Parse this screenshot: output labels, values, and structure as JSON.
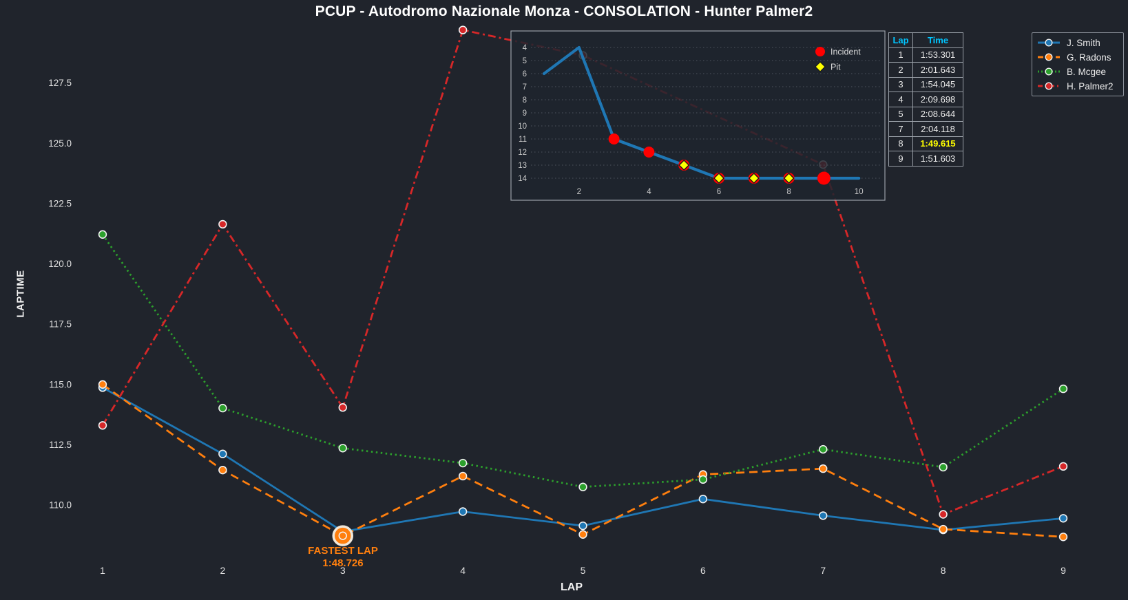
{
  "title": "PCUP - Autodromo Nazionale Monza - CONSOLATION - Hunter Palmer2",
  "colors": {
    "background": "#20242c",
    "text": "#ececec",
    "tick_text": "#e2e2e2",
    "table_header": "#00c5ff",
    "highlight": "#ffff00",
    "incident": "#ff0000",
    "pit": "#ffff00",
    "annotation": "#ff7f0e",
    "inset_grid": "#4d545e",
    "panel_border": "#9aa0a8"
  },
  "chart_data": {
    "type": "line",
    "title": "PCUP - Autodromo Nazionale Monza - CONSOLATION - Hunter Palmer2",
    "xlabel": "LAP",
    "ylabel": "LAPTIME",
    "grid": false,
    "legend_position": "upper right",
    "axes": {
      "xticks": [
        1,
        2,
        3,
        4,
        5,
        6,
        7,
        8,
        9
      ],
      "yticks": [
        "127.5",
        "125.0",
        "122.5",
        "120.0",
        "117.5",
        "115.0",
        "112.5",
        "110.0"
      ],
      "ytick_values": [
        127.5,
        125.0,
        122.5,
        120.0,
        117.5,
        115.0,
        112.5,
        110.0
      ],
      "ylim": [
        108.4,
        130.1
      ],
      "xlim": [
        0.8,
        9.5
      ]
    },
    "x": [
      1,
      2,
      3,
      4,
      5,
      6,
      7,
      8,
      9
    ],
    "series": [
      {
        "name": "J. Smith",
        "color": "#1f77b4",
        "style": "solid",
        "values": [
          114.87,
          112.12,
          108.9,
          109.73,
          109.14,
          110.25,
          109.56,
          108.97,
          109.45
        ]
      },
      {
        "name": "G. Radons",
        "color": "#ff7f0e",
        "style": "dashed",
        "values": [
          115.0,
          111.45,
          108.726,
          111.2,
          108.78,
          111.27,
          111.51,
          109.0,
          108.68
        ]
      },
      {
        "name": "B. Mcgee",
        "color": "#2ca02c",
        "style": "dotted",
        "values": [
          121.22,
          114.02,
          112.36,
          111.74,
          110.75,
          111.06,
          112.31,
          111.57,
          114.82
        ]
      },
      {
        "name": "H. Palmer2",
        "color": "#d62728",
        "style": "dashdot",
        "values": [
          113.301,
          121.643,
          114.045,
          129.698,
          128.644,
          null,
          124.118,
          109.615,
          111.603
        ]
      }
    ],
    "fastest_lap": {
      "series": "G. Radons",
      "lap": 3,
      "value": 108.726,
      "label": "FASTEST LAP",
      "time": "1:48.726"
    },
    "inset": {
      "type": "line",
      "description": "position by lap",
      "laps": [
        1,
        2,
        3,
        4,
        5,
        6,
        7,
        8,
        9,
        10
      ],
      "positions": [
        6,
        4,
        11,
        12,
        13,
        14,
        14,
        14,
        14,
        14
      ],
      "incident_laps": [
        3,
        4,
        9
      ],
      "pit_laps": [
        5,
        6,
        7,
        8
      ],
      "yticks": [
        4,
        5,
        6,
        7,
        8,
        9,
        10,
        11,
        12,
        13,
        14
      ],
      "xticks": [
        2,
        4,
        6,
        8,
        10
      ],
      "line_color": "#1f77b4",
      "legend": [
        {
          "label": "Incident",
          "marker": "circle",
          "color": "#ff0000"
        },
        {
          "label": "Pit",
          "marker": "diamond",
          "color": "#ffff00"
        }
      ]
    },
    "table": {
      "headers": [
        "Lap",
        "Time"
      ],
      "rows": [
        [
          "1",
          "1:53.301"
        ],
        [
          "2",
          "2:01.643"
        ],
        [
          "3",
          "1:54.045"
        ],
        [
          "4",
          "2:09.698"
        ],
        [
          "5",
          "2:08.644"
        ],
        [
          "7",
          "2:04.118"
        ],
        [
          "8",
          "1:49.615"
        ],
        [
          "9",
          "1:51.603"
        ]
      ],
      "highlight_lap": "8"
    },
    "legend_entries": [
      "J. Smith",
      "G. Radons",
      "B. Mcgee",
      "H. Palmer2"
    ]
  }
}
